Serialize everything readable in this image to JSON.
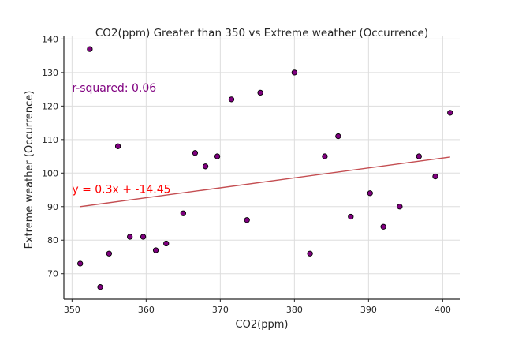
{
  "chart_data": {
    "type": "scatter",
    "title": "CO2(ppm) Greater than 350 vs Extreme weather (Occurrence)",
    "xlabel": "CO2(ppm)",
    "ylabel": "Extreme weather (Occurrence)",
    "xlim": [
      348.9,
      402.3
    ],
    "ylim": [
      62.4,
      140.8
    ],
    "xticks": [
      350,
      360,
      370,
      380,
      390,
      400
    ],
    "yticks": [
      70,
      80,
      90,
      100,
      110,
      120,
      130,
      140
    ],
    "grid": true,
    "points": [
      {
        "x": 351.1,
        "y": 73
      },
      {
        "x": 352.4,
        "y": 137
      },
      {
        "x": 353.8,
        "y": 66
      },
      {
        "x": 355.0,
        "y": 76
      },
      {
        "x": 356.2,
        "y": 108
      },
      {
        "x": 357.8,
        "y": 81
      },
      {
        "x": 359.6,
        "y": 81
      },
      {
        "x": 361.3,
        "y": 77
      },
      {
        "x": 362.7,
        "y": 79
      },
      {
        "x": 365.0,
        "y": 88
      },
      {
        "x": 366.6,
        "y": 106
      },
      {
        "x": 368.0,
        "y": 102
      },
      {
        "x": 369.6,
        "y": 105
      },
      {
        "x": 371.5,
        "y": 122
      },
      {
        "x": 373.6,
        "y": 86
      },
      {
        "x": 375.4,
        "y": 124
      },
      {
        "x": 380.0,
        "y": 130
      },
      {
        "x": 382.1,
        "y": 76
      },
      {
        "x": 384.1,
        "y": 105
      },
      {
        "x": 385.9,
        "y": 111
      },
      {
        "x": 387.6,
        "y": 87
      },
      {
        "x": 390.2,
        "y": 94
      },
      {
        "x": 392.0,
        "y": 84
      },
      {
        "x": 394.2,
        "y": 90
      },
      {
        "x": 396.8,
        "y": 105
      },
      {
        "x": 399.0,
        "y": 99
      },
      {
        "x": 401.0,
        "y": 118
      }
    ],
    "regression": {
      "x_start": 351.1,
      "y_start": 90.0,
      "x_end": 401.0,
      "y_end": 104.8,
      "color": "#c44e52"
    },
    "marker_fill": "#800080",
    "marker_edge": "#000000",
    "annotations": [
      {
        "text": "r-squared: 0.06",
        "x": 350.0,
        "y": 125.5,
        "color": "#800080"
      },
      {
        "text": "y = 0.3x + -14.45",
        "x": 350.0,
        "y": 95.3,
        "color": "#ff0000"
      }
    ]
  }
}
